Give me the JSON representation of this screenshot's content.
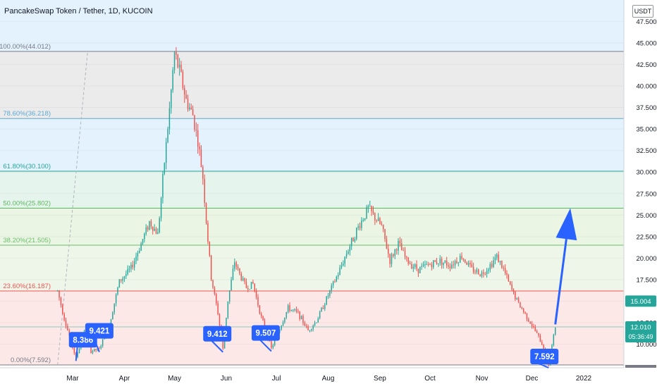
{
  "chart_data": {
    "type": "candlestick",
    "title": "PancakeSwap Token / Tether, 1D, KUCOIN",
    "currency": "USDT",
    "ylim": [
      7.592,
      48.6
    ],
    "y_ticks": [
      "47.500",
      "45.000",
      "42.500",
      "40.000",
      "37.500",
      "35.000",
      "32.500",
      "30.000",
      "27.500",
      "25.000",
      "22.500",
      "20.000",
      "17.500",
      "15.000",
      "12.500",
      "10.000"
    ],
    "x_ticks": [
      "Mar",
      "Apr",
      "May",
      "Jun",
      "Jul",
      "Aug",
      "Sep",
      "Oct",
      "Nov",
      "Dec",
      "2022"
    ],
    "fib_levels": [
      {
        "label": "100.00%(44.012)",
        "value": 44.012,
        "color": "#787b86"
      },
      {
        "label": "78.60%(36.218)",
        "value": 36.218,
        "color": "#5fa8d3"
      },
      {
        "label": "61.80%(30.100)",
        "value": 30.1,
        "color": "#26a69a"
      },
      {
        "label": "50.00%(25.802)",
        "value": 25.802,
        "color": "#5cb85c"
      },
      {
        "label": "38.20%(21.505)",
        "value": 21.505,
        "color": "#6cbf6c"
      },
      {
        "label": "23.60%(16.187)",
        "value": 16.187,
        "color": "#ef5350"
      },
      {
        "label": "0.00%(7.592)",
        "value": 7.592,
        "color": "#787b86"
      }
    ],
    "price_series": [
      {
        "date": "2021-02-20",
        "value": 16.2
      },
      {
        "date": "2021-02-24",
        "value": 13.0
      },
      {
        "date": "2021-02-28",
        "value": 10.3
      },
      {
        "date": "2021-03-03",
        "value": 8.386
      },
      {
        "date": "2021-03-08",
        "value": 11.4
      },
      {
        "date": "2021-03-12",
        "value": 9.2
      },
      {
        "date": "2021-03-17",
        "value": 9.421
      },
      {
        "date": "2021-03-23",
        "value": 12.3
      },
      {
        "date": "2021-03-29",
        "value": 17.3
      },
      {
        "date": "2021-04-05",
        "value": 18.8
      },
      {
        "date": "2021-04-10",
        "value": 21.2
      },
      {
        "date": "2021-04-16",
        "value": 24.2
      },
      {
        "date": "2021-04-21",
        "value": 22.8
      },
      {
        "date": "2021-04-25",
        "value": 31.2
      },
      {
        "date": "2021-04-28",
        "value": 37.2
      },
      {
        "date": "2021-05-01",
        "value": 43.8
      },
      {
        "date": "2021-05-05",
        "value": 41.0
      },
      {
        "date": "2021-05-08",
        "value": 38.3
      },
      {
        "date": "2021-05-12",
        "value": 36.6
      },
      {
        "date": "2021-05-15",
        "value": 33.6
      },
      {
        "date": "2021-05-18",
        "value": 29.4
      },
      {
        "date": "2021-05-20",
        "value": 24.3
      },
      {
        "date": "2021-05-23",
        "value": 17.7
      },
      {
        "date": "2021-05-27",
        "value": 13.6
      },
      {
        "date": "2021-05-30",
        "value": 9.412
      },
      {
        "date": "2021-06-02",
        "value": 15.1
      },
      {
        "date": "2021-06-06",
        "value": 19.6
      },
      {
        "date": "2021-06-09",
        "value": 18.1
      },
      {
        "date": "2021-06-13",
        "value": 16.6
      },
      {
        "date": "2021-06-17",
        "value": 17.0
      },
      {
        "date": "2021-06-22",
        "value": 13.1
      },
      {
        "date": "2021-06-28",
        "value": 9.507
      },
      {
        "date": "2021-07-04",
        "value": 12.3
      },
      {
        "date": "2021-07-08",
        "value": 14.2
      },
      {
        "date": "2021-07-14",
        "value": 13.6
      },
      {
        "date": "2021-07-20",
        "value": 11.6
      },
      {
        "date": "2021-07-25",
        "value": 12.7
      },
      {
        "date": "2021-08-01",
        "value": 15.7
      },
      {
        "date": "2021-08-07",
        "value": 18.2
      },
      {
        "date": "2021-08-12",
        "value": 20.6
      },
      {
        "date": "2021-08-18",
        "value": 23.2
      },
      {
        "date": "2021-08-25",
        "value": 25.8
      },
      {
        "date": "2021-08-29",
        "value": 24.7
      },
      {
        "date": "2021-09-02",
        "value": 23.7
      },
      {
        "date": "2021-09-07",
        "value": 19.7
      },
      {
        "date": "2021-09-12",
        "value": 21.7
      },
      {
        "date": "2021-09-17",
        "value": 19.7
      },
      {
        "date": "2021-09-24",
        "value": 18.7
      },
      {
        "date": "2021-10-01",
        "value": 19.3
      },
      {
        "date": "2021-10-07",
        "value": 19.7
      },
      {
        "date": "2021-10-13",
        "value": 19.2
      },
      {
        "date": "2021-10-20",
        "value": 20.2
      },
      {
        "date": "2021-10-26",
        "value": 18.7
      },
      {
        "date": "2021-11-01",
        "value": 18.2
      },
      {
        "date": "2021-11-06",
        "value": 19.2
      },
      {
        "date": "2021-11-10",
        "value": 20.2
      },
      {
        "date": "2021-11-14",
        "value": 18.7
      },
      {
        "date": "2021-11-18",
        "value": 16.7
      },
      {
        "date": "2021-11-23",
        "value": 14.7
      },
      {
        "date": "2021-11-28",
        "value": 13.2
      },
      {
        "date": "2021-12-04",
        "value": 11.2
      },
      {
        "date": "2021-12-08",
        "value": 9.6
      },
      {
        "date": "2021-12-11",
        "value": 7.592
      },
      {
        "date": "2021-12-15",
        "value": 12.01
      }
    ],
    "annotations": [
      {
        "text": "8.386",
        "date": "2021-03-03",
        "value": 8.386
      },
      {
        "text": "9.421",
        "date": "2021-03-17",
        "value": 9.421
      },
      {
        "text": "9.412",
        "date": "2021-05-30",
        "value": 9.412
      },
      {
        "text": "9.507",
        "date": "2021-06-28",
        "value": 9.507
      },
      {
        "text": "7.592",
        "date": "2021-12-11",
        "value": 7.592
      }
    ],
    "price_tags": [
      {
        "text": "15.004",
        "value": 15.004,
        "color": "#26a69a"
      },
      {
        "text": "12.010",
        "value": 12.01,
        "color": "#26a69a"
      },
      {
        "text": "05:36:49",
        "color": "#26a69a"
      }
    ],
    "arrow": {
      "from": {
        "date": "2021-12-15",
        "value": 12.3
      },
      "to": {
        "date": "2021-12-24",
        "value": 25.8
      },
      "color": "#2962ff"
    }
  }
}
